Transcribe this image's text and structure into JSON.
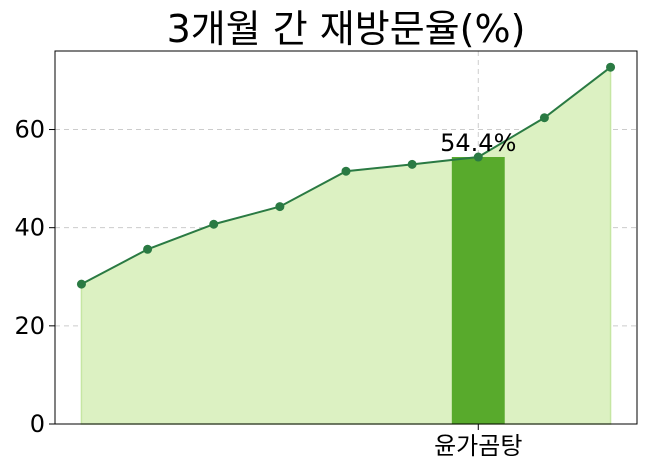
{
  "chart_data": {
    "type": "line",
    "title": "3개월 간 재방문율(%)",
    "xlabel": "",
    "ylabel": "",
    "x": [
      0,
      1,
      2,
      3,
      4,
      5,
      6,
      7,
      8
    ],
    "series": [
      {
        "values": [
          28.5,
          35.6,
          40.7,
          44.3,
          51.5,
          52.9,
          54.4,
          62.4,
          72.7
        ]
      }
    ],
    "highlight": {
      "index": 6,
      "category": "윤가곰탕",
      "value": 54.4,
      "label": "54.4%"
    },
    "x_tick_labels": [
      {
        "index": 6,
        "text": "윤가곰탕"
      }
    ],
    "ylim": [
      0,
      76
    ],
    "yticks": [
      0,
      20,
      40,
      60
    ],
    "ytick_labels": [
      "0",
      "20",
      "40",
      "60"
    ],
    "grid": true,
    "colors": {
      "line": "#2a7a43",
      "marker": "#2a7a43",
      "area": "#dcf1c2",
      "area_edge": "#c6e6a3",
      "bar": "#58aa2c"
    }
  }
}
